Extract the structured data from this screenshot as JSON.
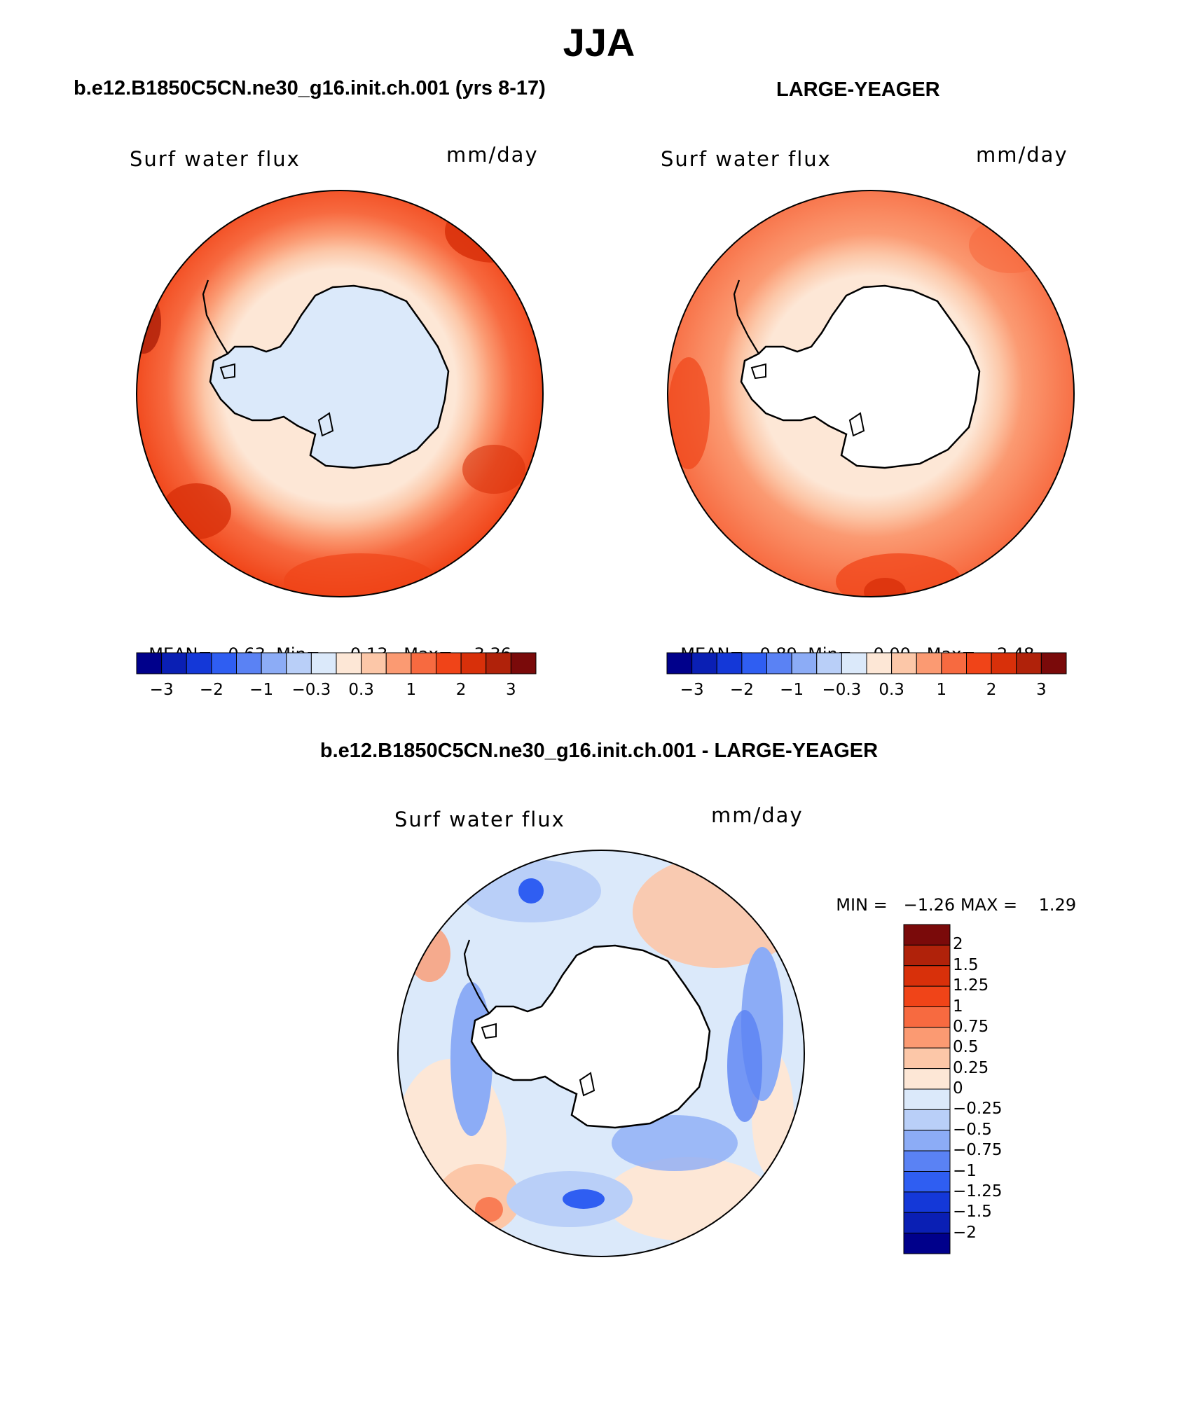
{
  "title": "JJA",
  "panels": {
    "left": {
      "case_title": "b.e12.B1850C5CN.ne30_g16.init.ch.001 (yrs 8-17)",
      "variable": "Surf water flux",
      "units": "mm/day",
      "mean_label": "MEAN=",
      "mean": "0.63",
      "min_label": "Min=",
      "min": "−0.13",
      "max_label": "Max=",
      "max": "3.36"
    },
    "right": {
      "case_title": "LARGE-YEAGER",
      "variable": "Surf water flux",
      "units": "mm/day",
      "mean_label": "MEAN=",
      "mean": "0.89",
      "min_label": "Min=",
      "min": "0.00",
      "max_label": "Max=",
      "max": "2.48"
    },
    "diff": {
      "case_title": "b.e12.B1850C5CN.ne30_g16.init.ch.001 - LARGE-YEAGER",
      "variable": "Surf water flux",
      "units": "mm/day",
      "min_label": "MIN =",
      "min": "−1.26",
      "max_label": "MAX =",
      "max": "1.29"
    }
  },
  "colorbar_main": {
    "colors": [
      "#00008b",
      "#0a1fb4",
      "#1438d8",
      "#2f5ef2",
      "#5a82f4",
      "#8cacf6",
      "#b9cff8",
      "#dbe9fa",
      "#fde7d6",
      "#fcc7a8",
      "#fb9a72",
      "#f76a40",
      "#f04418",
      "#d8300a",
      "#b0220a",
      "#7a0a0a"
    ],
    "ticks": [
      "−3",
      "−2",
      "−1",
      "−0.3",
      "0.3",
      "1",
      "2",
      "3"
    ]
  },
  "colorbar_diff": {
    "colors": [
      "#7a0a0a",
      "#b0220a",
      "#d8300a",
      "#f04418",
      "#f76a40",
      "#fb9a72",
      "#fcc7a8",
      "#fde7d6",
      "#dbe9fa",
      "#b9cff8",
      "#8cacf6",
      "#5a82f4",
      "#2f5ef2",
      "#1438d8",
      "#0a1fb4",
      "#00008b"
    ],
    "labels": [
      "2",
      "1.5",
      "1.25",
      "1",
      "0.75",
      "0.5",
      "0.25",
      "0",
      "−0.25",
      "−0.5",
      "−0.75",
      "−1",
      "−1.25",
      "−1.5",
      "−2"
    ]
  }
}
